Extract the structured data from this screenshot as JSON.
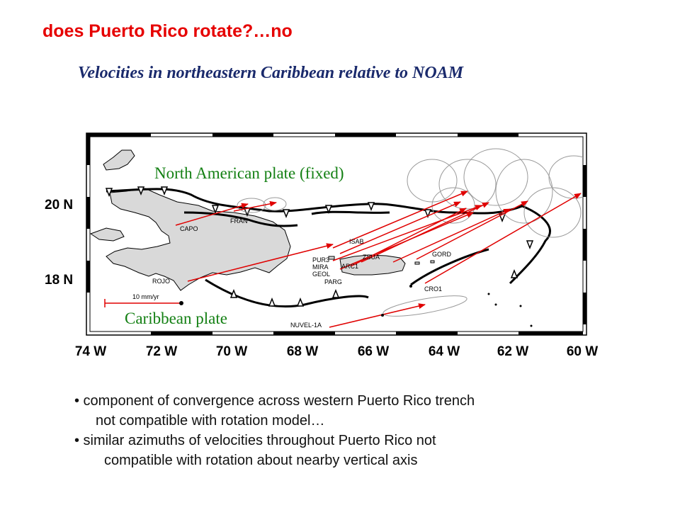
{
  "slide_title": "does Puerto Rico rotate?…no",
  "map": {
    "title": "Velocities  in northeastern Caribbean relative to NOAM",
    "plate_north": "North  American  plate  (fixed)",
    "plate_south": "Caribbean  plate",
    "lat_labels": [
      "20 N",
      "18 N"
    ],
    "lon_labels": [
      "74 W",
      "72 W",
      "70 W",
      "68 W",
      "66 W",
      "64 W",
      "62 W",
      "60 W"
    ],
    "scale_label": "10 mm/yr",
    "stations": [
      "CAPO",
      "FRAN",
      "ISAB",
      "PUR3",
      "MIRA",
      "GEOL",
      "ARC1",
      "ZSUA",
      "PARG",
      "GORD",
      "CRO1",
      "ROJO",
      "NUVEL-1A"
    ],
    "colors": {
      "velocity_arrow": "#e00000",
      "land": "#d9d9d9",
      "boundary": "#000000",
      "title": "#1a2a6c"
    }
  },
  "bullets": {
    "b1_line1": "• component of convergence across western Puerto Rico trench",
    "b1_line2": "not compatible with rotation model…",
    "b2_line1": "• similar azimuths of velocities throughout Puerto Rico not",
    "b2_line2": "compatible with rotation about nearby vertical axis"
  }
}
